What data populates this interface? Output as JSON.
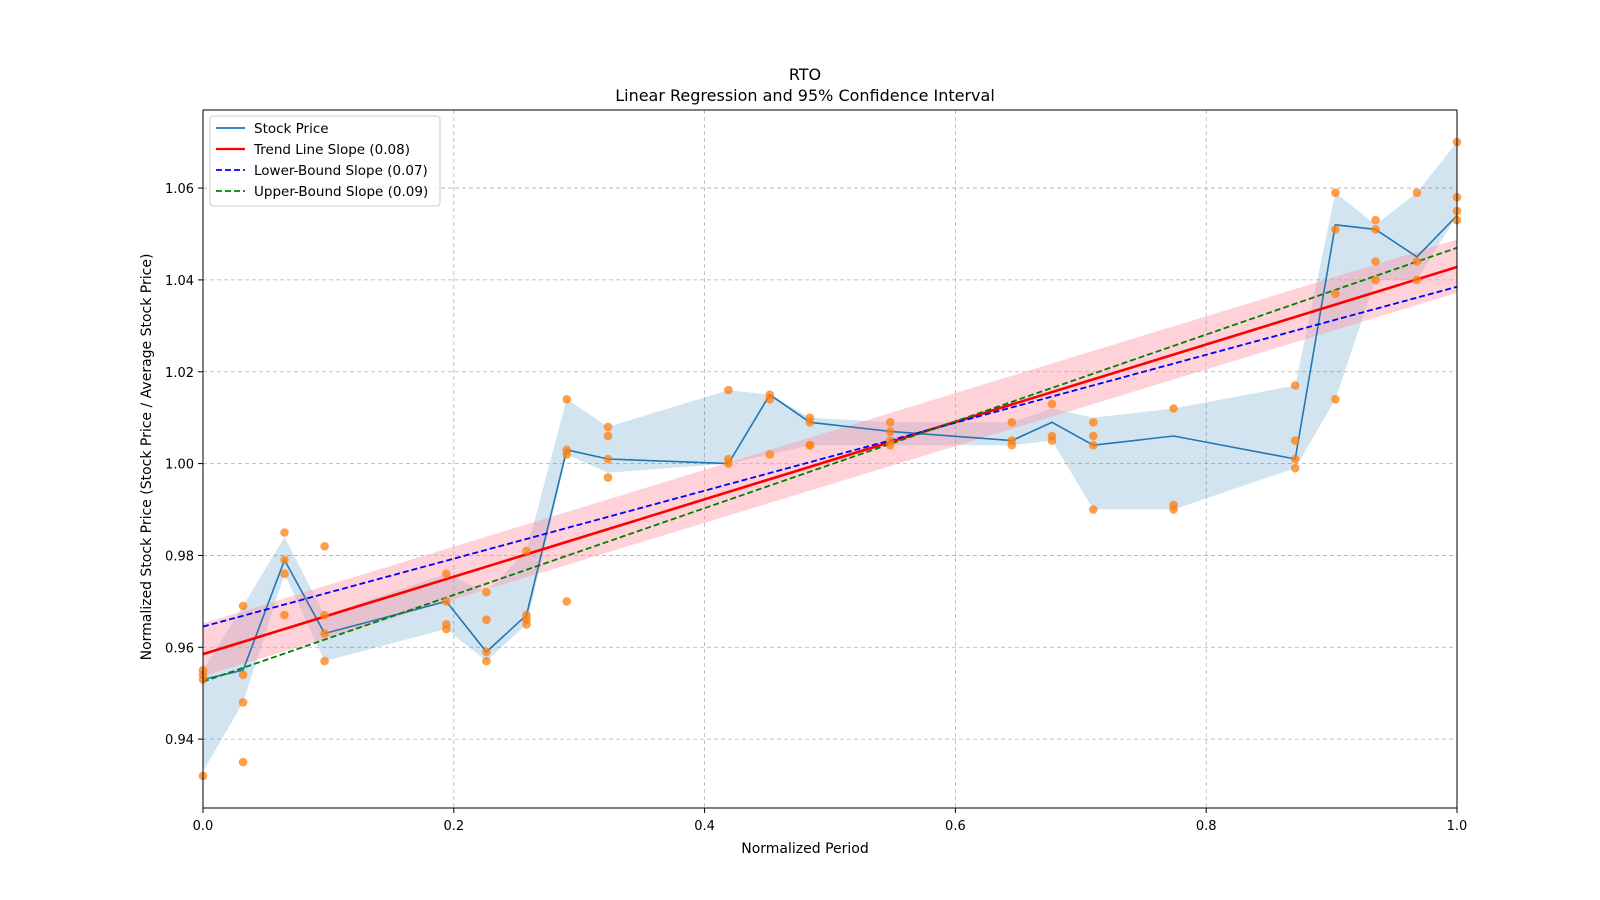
{
  "chart_data": {
    "type": "line",
    "title": "RTO",
    "subtitle": "Linear Regression and 95% Confidence Interval",
    "xlabel": "Normalized Period",
    "ylabel": "Normalized Stock Price (Stock Price / Average Stock Price)",
    "xlim": [
      0.0,
      1.0
    ],
    "ylim": [
      0.925,
      1.077
    ],
    "xticks": [
      0.0,
      0.2,
      0.4,
      0.6,
      0.8,
      1.0
    ],
    "xtick_labels": [
      "0.0",
      "0.2",
      "0.4",
      "0.6",
      "0.8",
      "1.0"
    ],
    "yticks": [
      0.94,
      0.96,
      0.98,
      1.0,
      1.02,
      1.04,
      1.06
    ],
    "ytick_labels": [
      "0.94",
      "0.96",
      "0.98",
      "1.00",
      "1.02",
      "1.04",
      "1.06"
    ],
    "grid": true,
    "legend_position": "top-left",
    "colors": {
      "stock": "#1f77b4",
      "stock_band": "#1f77b4",
      "scatter": "#ff7f0e",
      "trend": "#ff0000",
      "trend_band": "#ff9aa8",
      "lower": "#0000ff",
      "upper": "#008000"
    },
    "legend": [
      {
        "label": "Stock Price",
        "style": "solid",
        "color": "#1f77b4"
      },
      {
        "label": "Trend Line Slope (0.08)",
        "style": "solid",
        "color": "#ff0000"
      },
      {
        "label": "Lower-Bound Slope (0.07)",
        "style": "dashed",
        "color": "#0000ff"
      },
      {
        "label": "Upper-Bound Slope (0.09)",
        "style": "dashed",
        "color": "#008000"
      }
    ],
    "stock_price": {
      "x": [
        0.0,
        0.032,
        0.065,
        0.097,
        0.194,
        0.226,
        0.258,
        0.29,
        0.323,
        0.419,
        0.452,
        0.484,
        0.548,
        0.645,
        0.677,
        0.71,
        0.774,
        0.871,
        0.903,
        0.935,
        0.968,
        1.0
      ],
      "y": [
        0.953,
        0.955,
        0.979,
        0.963,
        0.97,
        0.959,
        0.967,
        1.003,
        1.001,
        1.0,
        1.015,
        1.009,
        1.007,
        1.005,
        1.009,
        1.004,
        1.006,
        1.001,
        1.052,
        1.051,
        1.045,
        1.054
      ],
      "band_low": [
        0.933,
        0.948,
        0.976,
        0.957,
        0.964,
        0.957,
        0.965,
        1.002,
        0.998,
        1.0,
        1.002,
        1.004,
        1.004,
        1.004,
        1.005,
        0.99,
        0.99,
        0.999,
        1.014,
        1.04,
        1.04,
        1.054
      ],
      "band_high": [
        0.955,
        0.969,
        0.984,
        0.967,
        0.976,
        0.972,
        0.981,
        1.014,
        1.008,
        1.016,
        1.015,
        1.01,
        1.009,
        1.009,
        1.012,
        1.01,
        1.012,
        1.017,
        1.059,
        1.052,
        1.059,
        1.07
      ]
    },
    "scatter_points": {
      "x": [
        0.0,
        0.0,
        0.0,
        0.0,
        0.032,
        0.032,
        0.032,
        0.032,
        0.065,
        0.065,
        0.065,
        0.065,
        0.097,
        0.097,
        0.097,
        0.097,
        0.194,
        0.194,
        0.194,
        0.194,
        0.226,
        0.226,
        0.226,
        0.226,
        0.258,
        0.258,
        0.258,
        0.258,
        0.29,
        0.29,
        0.29,
        0.29,
        0.323,
        0.323,
        0.323,
        0.323,
        0.419,
        0.419,
        0.419,
        0.452,
        0.452,
        0.452,
        0.484,
        0.484,
        0.484,
        0.484,
        0.548,
        0.548,
        0.548,
        0.548,
        0.645,
        0.645,
        0.645,
        0.677,
        0.677,
        0.677,
        0.71,
        0.71,
        0.71,
        0.71,
        0.774,
        0.774,
        0.774,
        0.871,
        0.871,
        0.871,
        0.871,
        0.903,
        0.903,
        0.903,
        0.903,
        0.935,
        0.935,
        0.935,
        0.935,
        0.968,
        0.968,
        0.968,
        1.0,
        1.0,
        1.0,
        1.0
      ],
      "y": [
        0.955,
        0.954,
        0.953,
        0.932,
        0.969,
        0.954,
        0.948,
        0.935,
        0.985,
        0.979,
        0.976,
        0.967,
        0.982,
        0.967,
        0.963,
        0.957,
        0.976,
        0.97,
        0.965,
        0.964,
        0.972,
        0.966,
        0.959,
        0.957,
        0.981,
        0.967,
        0.966,
        0.965,
        1.014,
        1.003,
        1.002,
        0.97,
        1.008,
        1.006,
        1.001,
        0.997,
        1.016,
        1.001,
        1.0,
        1.015,
        1.014,
        1.002,
        1.01,
        1.009,
        1.004,
        1.004,
        1.009,
        1.007,
        1.005,
        1.004,
        1.009,
        1.005,
        1.004,
        1.013,
        1.006,
        1.005,
        1.009,
        1.006,
        1.004,
        0.99,
        1.012,
        0.991,
        0.99,
        1.017,
        1.005,
        1.001,
        0.999,
        1.059,
        1.051,
        1.037,
        1.014,
        1.053,
        1.051,
        1.044,
        1.04,
        1.059,
        1.044,
        1.04,
        1.07,
        1.058,
        1.055,
        1.053
      ]
    },
    "trend_line": {
      "x": [
        0.0,
        1.0
      ],
      "y": [
        0.9585,
        1.0428
      ],
      "band_y_low": [
        0.9537,
        1.0372
      ],
      "band_y_high": [
        0.9652,
        1.0488
      ]
    },
    "lower_bound_line": {
      "x": [
        0.0,
        1.0
      ],
      "y": [
        0.9645,
        1.0385
      ]
    },
    "upper_bound_line": {
      "x": [
        0.0,
        1.0
      ],
      "y": [
        0.9525,
        1.047
      ]
    }
  }
}
